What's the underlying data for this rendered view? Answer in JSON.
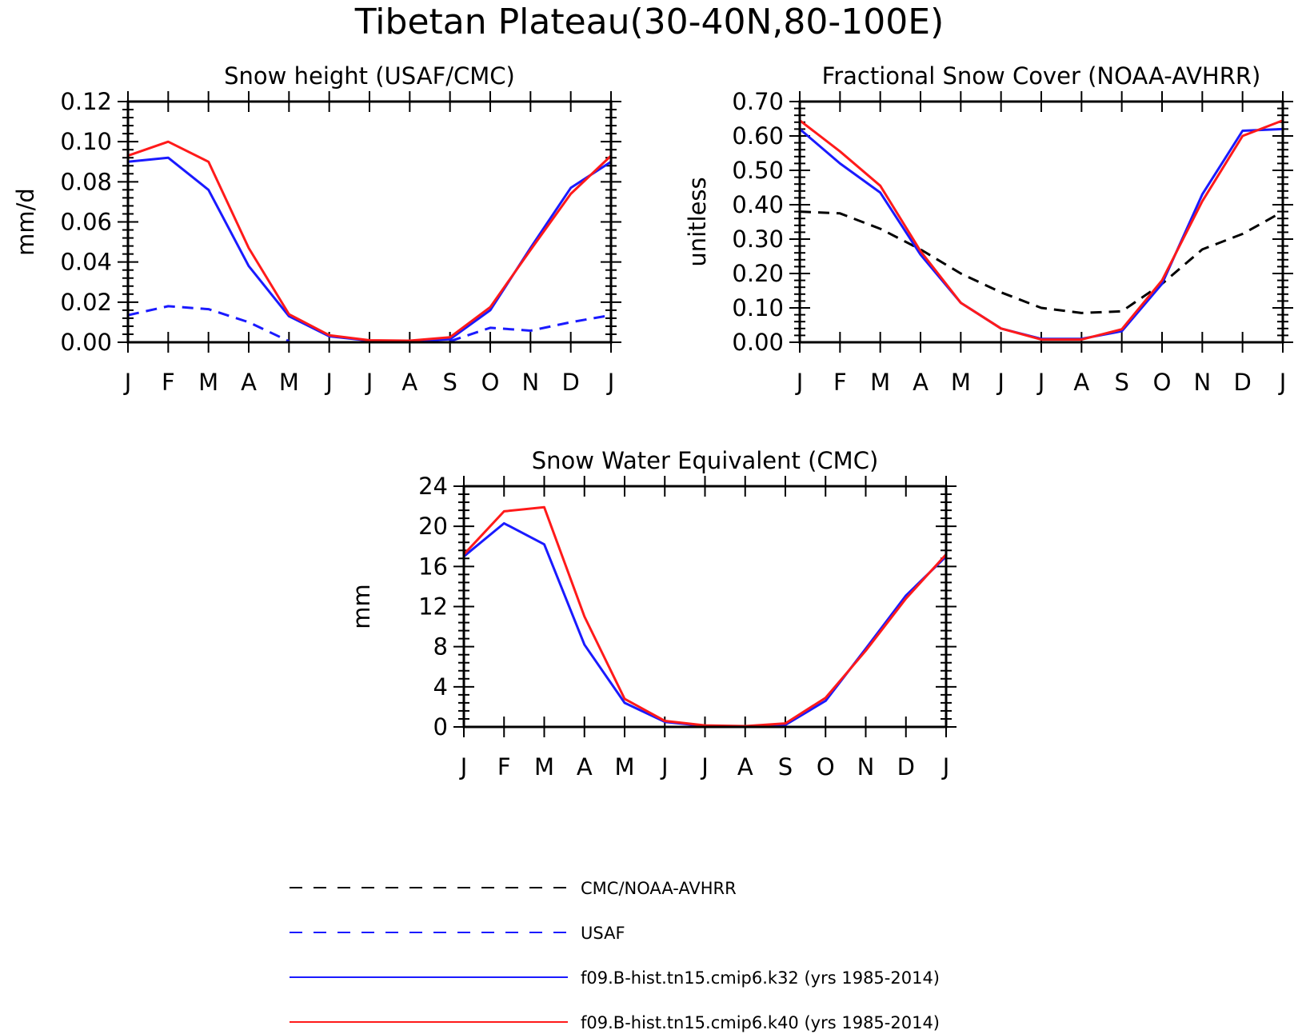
{
  "title": "Tibetan Plateau(30-40N,80-100E)",
  "colors": {
    "obs_black": "#000000",
    "obs_blue": "#1a1aff",
    "k32": "#1a1aff",
    "k40": "#ff1a1a"
  },
  "legend": [
    {
      "label": "CMC/NOAA-AVHRR",
      "color": "#000000",
      "dash": "dashed"
    },
    {
      "label": "USAF",
      "color": "#1a1aff",
      "dash": "dashed"
    },
    {
      "label": "f09.B-hist.tn15.cmip6.k32 (yrs 1985-2014)",
      "color": "#1a1aff",
      "dash": "solid"
    },
    {
      "label": "f09.B-hist.tn15.cmip6.k40 (yrs 1985-2014)",
      "color": "#ff1a1a",
      "dash": "solid"
    }
  ],
  "chart_data": [
    {
      "type": "line",
      "title": "Snow height (USAF/CMC)",
      "xlabel": "",
      "ylabel": "mm/d",
      "categories": [
        "J",
        "F",
        "M",
        "A",
        "M",
        "J",
        "J",
        "A",
        "S",
        "O",
        "N",
        "D",
        "J"
      ],
      "ylim": [
        0,
        0.12
      ],
      "yticks": [
        "0.00",
        "0.02",
        "0.04",
        "0.06",
        "0.08",
        "0.10",
        "0.12"
      ],
      "series": [
        {
          "name": "CMC/NOAA-AVHRR",
          "color": "#000000",
          "dash": "dashed",
          "values": [
            0,
            0,
            0,
            0,
            0,
            0,
            0,
            0,
            0,
            0,
            0,
            0,
            0
          ]
        },
        {
          "name": "USAF",
          "color": "#1a1aff",
          "dash": "dashed",
          "values": [
            0.0135,
            0.018,
            0.0165,
            0.01,
            0.0005,
            null,
            null,
            null,
            0.0005,
            0.0072,
            0.0058,
            0.01,
            0.0135
          ]
        },
        {
          "name": "f09.B-hist.tn15.cmip6.k32 (yrs 1985-2014)",
          "color": "#1a1aff",
          "dash": "solid",
          "values": [
            0.09,
            0.092,
            0.076,
            0.038,
            0.013,
            0.003,
            0.0008,
            0.0005,
            0.0015,
            0.016,
            0.047,
            0.077,
            0.09
          ]
        },
        {
          "name": "f09.B-hist.tn15.cmip6.k40 (yrs 1985-2014)",
          "color": "#ff1a1a",
          "dash": "solid",
          "values": [
            0.093,
            0.1,
            0.09,
            0.047,
            0.014,
            0.0035,
            0.001,
            0.0008,
            0.0025,
            0.0175,
            0.046,
            0.074,
            0.093
          ]
        }
      ]
    },
    {
      "type": "line",
      "title": "Fractional Snow Cover (NOAA-AVHRR)",
      "xlabel": "",
      "ylabel": "unitless",
      "categories": [
        "J",
        "F",
        "M",
        "A",
        "M",
        "J",
        "J",
        "A",
        "S",
        "O",
        "N",
        "D",
        "J"
      ],
      "ylim": [
        0,
        0.7
      ],
      "yticks": [
        "0.00",
        "0.10",
        "0.20",
        "0.30",
        "0.40",
        "0.50",
        "0.60",
        "0.70"
      ],
      "series": [
        {
          "name": "CMC/NOAA-AVHRR",
          "color": "#000000",
          "dash": "dashed",
          "values": [
            0.38,
            0.375,
            0.33,
            0.27,
            0.2,
            0.145,
            0.1,
            0.085,
            0.09,
            0.17,
            0.27,
            0.315,
            0.38
          ]
        },
        {
          "name": "f09.B-hist.tn15.cmip6.k32 (yrs 1985-2014)",
          "color": "#1a1aff",
          "dash": "solid",
          "values": [
            0.62,
            0.52,
            0.435,
            0.255,
            0.115,
            0.04,
            0.01,
            0.01,
            0.032,
            0.17,
            0.43,
            0.615,
            0.62
          ]
        },
        {
          "name": "f09.B-hist.tn15.cmip6.k40 (yrs 1985-2014)",
          "color": "#ff1a1a",
          "dash": "solid",
          "values": [
            0.645,
            0.555,
            0.455,
            0.265,
            0.115,
            0.04,
            0.008,
            0.008,
            0.038,
            0.18,
            0.41,
            0.6,
            0.645
          ]
        }
      ]
    },
    {
      "type": "line",
      "title": "Snow Water Equivalent (CMC)",
      "xlabel": "",
      "ylabel": "mm",
      "categories": [
        "J",
        "F",
        "M",
        "A",
        "M",
        "J",
        "J",
        "A",
        "S",
        "O",
        "N",
        "D",
        "J"
      ],
      "ylim": [
        0,
        24
      ],
      "yticks": [
        "0",
        "4",
        "8",
        "12",
        "16",
        "20",
        "24"
      ],
      "series": [
        {
          "name": "CMC/NOAA-AVHRR",
          "color": "#000000",
          "dash": "dashed",
          "values": [
            0,
            0,
            0,
            0,
            0,
            0,
            0,
            0,
            0,
            0,
            0,
            0,
            0
          ]
        },
        {
          "name": "f09.B-hist.tn15.cmip6.k32 (yrs 1985-2014)",
          "color": "#1a1aff",
          "dash": "solid",
          "values": [
            17,
            20.3,
            18.2,
            8.2,
            2.4,
            0.5,
            0.1,
            0.05,
            0.2,
            2.6,
            7.8,
            13.1,
            17
          ]
        },
        {
          "name": "f09.B-hist.tn15.cmip6.k40 (yrs 1985-2014)",
          "color": "#ff1a1a",
          "dash": "solid",
          "values": [
            17.2,
            21.5,
            21.9,
            11,
            2.8,
            0.6,
            0.15,
            0.08,
            0.35,
            2.9,
            7.6,
            12.8,
            17.2
          ]
        }
      ]
    }
  ]
}
